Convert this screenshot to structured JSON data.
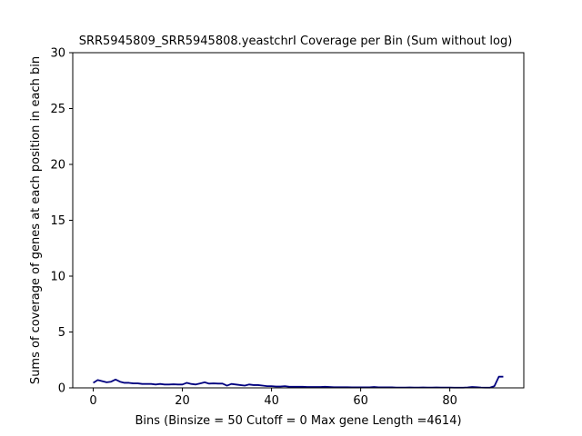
{
  "chart_data": {
    "type": "line",
    "title": "SRR5945809_SRR5945808.yeastchrI Coverage per Bin (Sum without log)",
    "xlabel": "Bins  (Binsize = 50 Cutoff = 0 Max gene Length =4614)",
    "ylabel": "Sums of coverage of genes at each position in each bin",
    "xlim": [
      -4.6,
      96.6
    ],
    "ylim": [
      0,
      30
    ],
    "xticks": [
      0,
      20,
      40,
      60,
      80
    ],
    "yticks": [
      0,
      5,
      10,
      15,
      20,
      25,
      30
    ],
    "grid": false,
    "legend": "none",
    "line_color": "#00007f",
    "series": [
      {
        "x": [
          0,
          1,
          2,
          3,
          4,
          5,
          6,
          7,
          8,
          9,
          10,
          11,
          12,
          13,
          14,
          15,
          16,
          17,
          18,
          19,
          20,
          21,
          22,
          23,
          24,
          25,
          26,
          27,
          28,
          29,
          30,
          31,
          32,
          33,
          34,
          35,
          36,
          37,
          38,
          39,
          40,
          41,
          42,
          43,
          44,
          45,
          46,
          47,
          48,
          49,
          50,
          51,
          52,
          53,
          54,
          55,
          56,
          57,
          58,
          59,
          60,
          61,
          62,
          63,
          64,
          65,
          66,
          67,
          68,
          69,
          70,
          71,
          72,
          73,
          74,
          75,
          76,
          77,
          78,
          79,
          80,
          81,
          82,
          83,
          84,
          85,
          86,
          87,
          88,
          89,
          90,
          91,
          92
        ],
        "values": [
          0.45,
          0.7,
          0.6,
          0.5,
          0.55,
          0.75,
          0.55,
          0.45,
          0.45,
          0.4,
          0.4,
          0.35,
          0.35,
          0.35,
          0.3,
          0.35,
          0.3,
          0.3,
          0.32,
          0.3,
          0.3,
          0.45,
          0.35,
          0.3,
          0.4,
          0.5,
          0.38,
          0.4,
          0.38,
          0.38,
          0.2,
          0.35,
          0.3,
          0.25,
          0.2,
          0.3,
          0.25,
          0.25,
          0.2,
          0.15,
          0.15,
          0.12,
          0.12,
          0.15,
          0.1,
          0.1,
          0.1,
          0.1,
          0.08,
          0.08,
          0.08,
          0.08,
          0.1,
          0.08,
          0.06,
          0.06,
          0.06,
          0.06,
          0.05,
          0.05,
          0.05,
          0.05,
          0.05,
          0.08,
          0.05,
          0.05,
          0.05,
          0.05,
          0.03,
          0.03,
          0.03,
          0.04,
          0.03,
          0.03,
          0.04,
          0.03,
          0.03,
          0.04,
          0.03,
          0.03,
          0.03,
          0.02,
          0.02,
          0.02,
          0.04,
          0.08,
          0.06,
          0.03,
          0.02,
          0.02,
          0.15,
          1.0,
          1.0
        ]
      }
    ]
  }
}
